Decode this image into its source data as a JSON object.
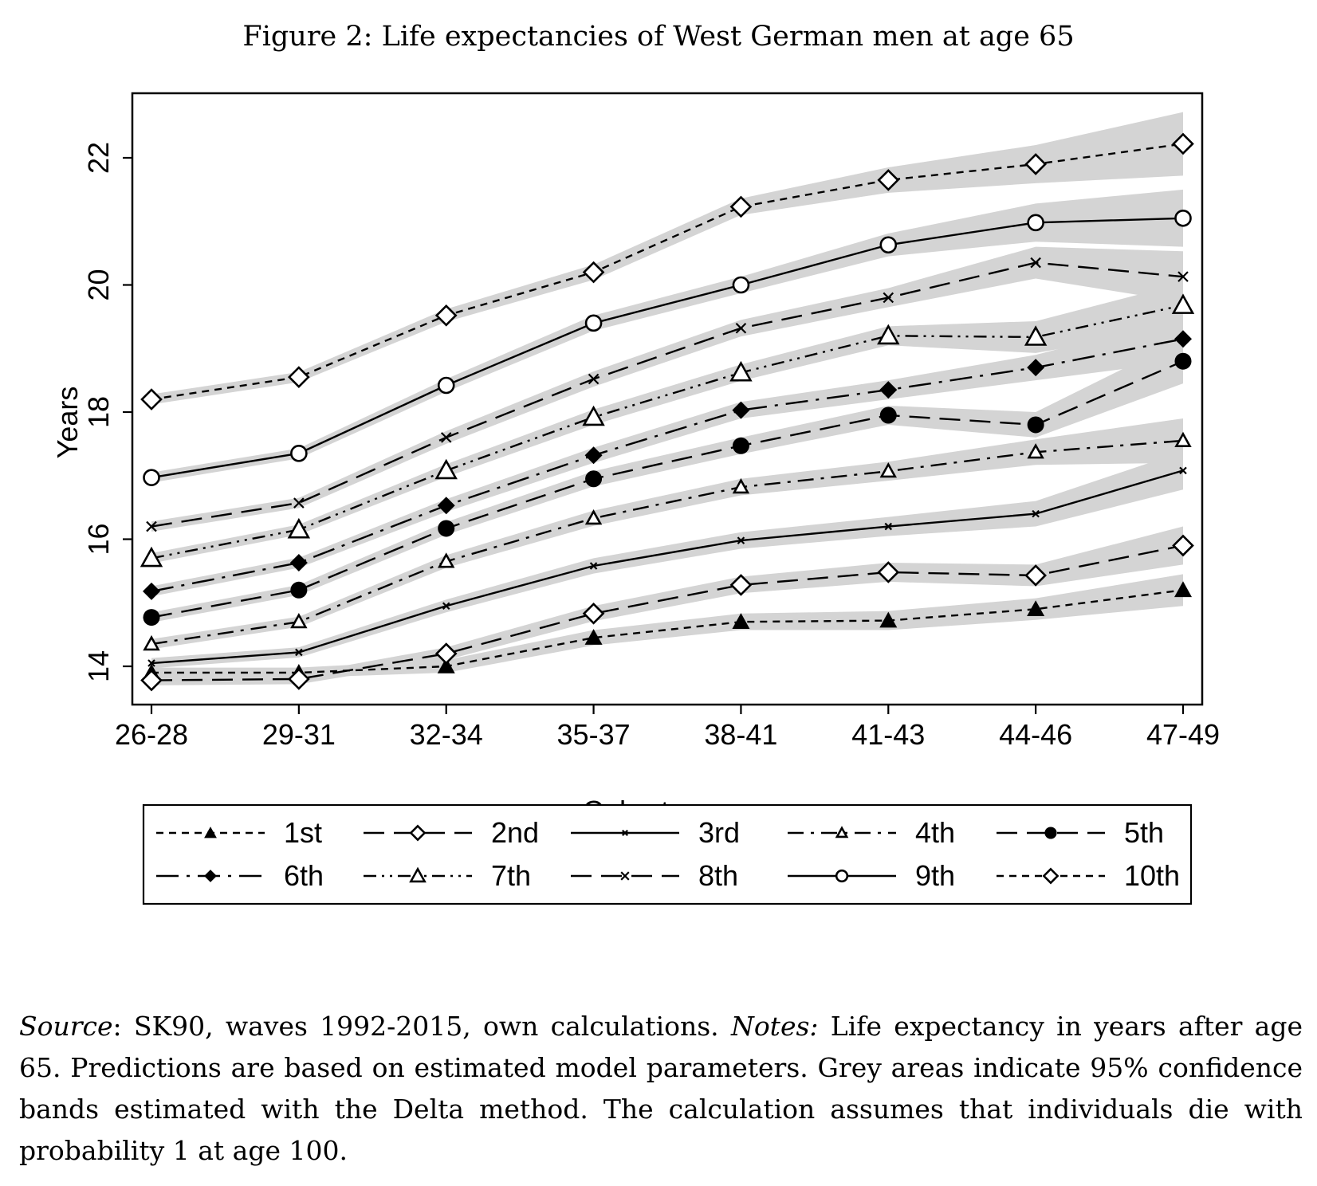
{
  "figure_title": "Figure 2: Life expectancies of West German men at age 65",
  "caption": {
    "source_label": "Source",
    "source_text": ": SK90, waves 1992-2015, own calculations.",
    "notes_label": "Notes:",
    "notes_text": " Life expectancy in years after age 65. Predictions are based on estimated model parameters. Grey areas indicate 95% confidence bands estimated with the Delta method. The calculation assumes that individuals die with probability 1 at age 100."
  },
  "colors": {
    "line": "#000000",
    "band": "#d4d4d4",
    "frame": "#000000"
  },
  "chart_data": {
    "type": "line",
    "title": "Figure 2: Life expectancies of West German men at age 65",
    "xlabel": "Cohort group",
    "ylabel": "Years",
    "categories": [
      "26-28",
      "29-31",
      "32-34",
      "35-37",
      "38-41",
      "41-43",
      "44-46",
      "47-49"
    ],
    "yticks": [
      14,
      16,
      18,
      20,
      22
    ],
    "ylim": [
      13.4,
      23.0
    ],
    "grid": false,
    "legend_position": "bottom",
    "confidence_bands": "95%",
    "series": [
      {
        "name": "1st",
        "marker": "triangle-filled",
        "dash": "short",
        "values": [
          13.9,
          13.9,
          14.0,
          14.45,
          14.7,
          14.72,
          14.9,
          15.2
        ],
        "band_halfwidth": [
          0.08,
          0.08,
          0.1,
          0.12,
          0.13,
          0.15,
          0.17,
          0.25
        ]
      },
      {
        "name": "2nd",
        "marker": "diamond-open",
        "dash": "long",
        "values": [
          13.78,
          13.8,
          14.2,
          14.83,
          15.28,
          15.48,
          15.43,
          15.9
        ],
        "band_halfwidth": [
          0.08,
          0.08,
          0.1,
          0.12,
          0.13,
          0.15,
          0.17,
          0.3
        ]
      },
      {
        "name": "3rd",
        "marker": "x-small",
        "dash": "solid",
        "values": [
          14.05,
          14.22,
          14.95,
          15.58,
          15.98,
          16.2,
          16.4,
          17.08
        ],
        "band_halfwidth": [
          0.08,
          0.08,
          0.1,
          0.12,
          0.13,
          0.15,
          0.2,
          0.3
        ]
      },
      {
        "name": "4th",
        "marker": "triangle-open-small",
        "dash": "dashdot",
        "values": [
          14.35,
          14.7,
          15.65,
          16.33,
          16.82,
          17.07,
          17.37,
          17.55
        ],
        "band_halfwidth": [
          0.08,
          0.08,
          0.1,
          0.12,
          0.13,
          0.15,
          0.2,
          0.35
        ]
      },
      {
        "name": "5th",
        "marker": "circle-filled",
        "dash": "long",
        "values": [
          14.77,
          15.2,
          16.17,
          16.95,
          17.47,
          17.95,
          17.8,
          18.8
        ],
        "band_halfwidth": [
          0.08,
          0.08,
          0.1,
          0.12,
          0.13,
          0.15,
          0.2,
          0.35
        ]
      },
      {
        "name": "6th",
        "marker": "diamond-filled",
        "dash": "longdot",
        "values": [
          15.18,
          15.63,
          16.53,
          17.32,
          18.03,
          18.35,
          18.7,
          19.15
        ],
        "band_halfwidth": [
          0.08,
          0.08,
          0.1,
          0.12,
          0.13,
          0.15,
          0.2,
          0.35
        ]
      },
      {
        "name": "7th",
        "marker": "triangle-open",
        "dash": "dashdotdot",
        "values": [
          15.7,
          16.15,
          17.08,
          17.92,
          18.62,
          19.2,
          19.18,
          19.68
        ],
        "band_halfwidth": [
          0.08,
          0.08,
          0.1,
          0.12,
          0.13,
          0.15,
          0.25,
          0.35
        ]
      },
      {
        "name": "8th",
        "marker": "x",
        "dash": "long",
        "values": [
          16.2,
          16.57,
          17.6,
          18.52,
          19.32,
          19.8,
          20.35,
          20.13
        ],
        "band_halfwidth": [
          0.08,
          0.08,
          0.1,
          0.12,
          0.13,
          0.15,
          0.25,
          0.4
        ]
      },
      {
        "name": "9th",
        "marker": "circle-open",
        "dash": "solid",
        "values": [
          16.97,
          17.35,
          18.42,
          19.4,
          20.0,
          20.63,
          20.98,
          21.05
        ],
        "band_halfwidth": [
          0.08,
          0.08,
          0.1,
          0.12,
          0.13,
          0.18,
          0.3,
          0.45
        ]
      },
      {
        "name": "10th",
        "marker": "diamond-open",
        "dash": "short",
        "values": [
          18.2,
          18.55,
          19.52,
          20.2,
          21.23,
          21.65,
          21.9,
          22.22
        ],
        "band_halfwidth": [
          0.08,
          0.08,
          0.1,
          0.12,
          0.13,
          0.2,
          0.3,
          0.5
        ]
      }
    ]
  }
}
